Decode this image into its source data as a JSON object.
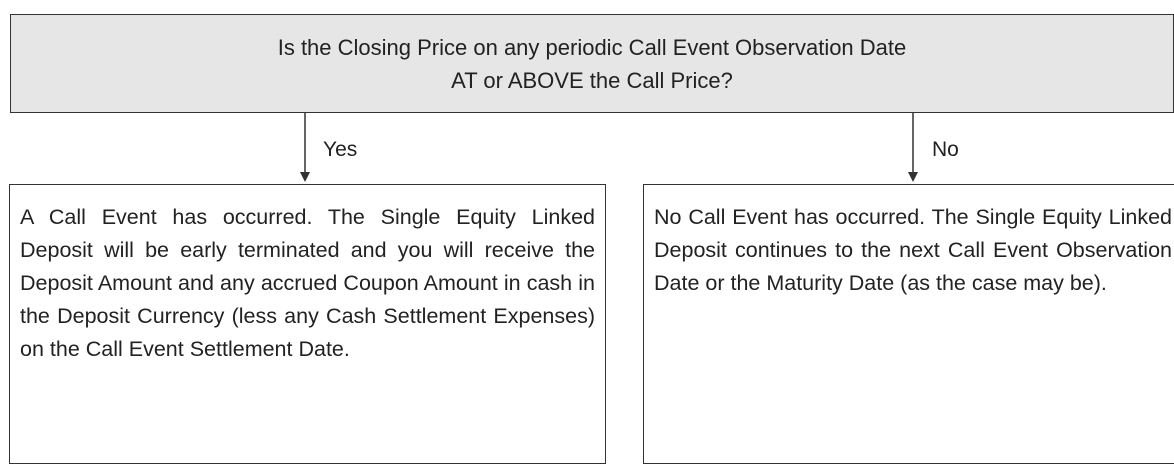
{
  "question": {
    "lines": [
      "Is the Closing Price on any periodic Call Event Observation Date",
      "AT or ABOVE the Call Price?"
    ]
  },
  "branches": [
    {
      "label": "Yes",
      "text": "A Call Event has occurred. The Single Equity Linked Deposit will be early terminated and you will receive the Deposit Amount and any accrued Coupon Amount in cash in the Deposit Currency (less any Cash Settlement Expenses) on the Call Event Settlement Date."
    },
    {
      "label": "No",
      "text": "No Call Event has occurred. The Single Equity Linked Deposit continues to the next Call Event Observation Date or the Maturity Date (as the case may be)."
    }
  ]
}
